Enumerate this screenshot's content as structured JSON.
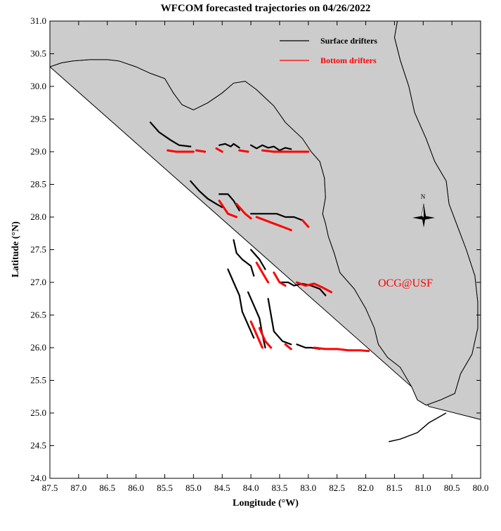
{
  "chart_data": {
    "type": "map",
    "title": "WFCOM forecasted trajectories on 04/26/2022",
    "xlabel": "Longitude (°W)",
    "ylabel": "Latitude (°N)",
    "xlim": [
      87.5,
      80.0
    ],
    "ylim": [
      24.0,
      31.0
    ],
    "x_ticks": [
      "87.5",
      "87.0",
      "86.5",
      "86.0",
      "85.5",
      "85.0",
      "84.5",
      "84.0",
      "83.5",
      "83.0",
      "82.5",
      "82.0",
      "81.5",
      "81.0",
      "80.5",
      "80.0"
    ],
    "y_ticks": [
      "31.0",
      "30.5",
      "30.0",
      "29.5",
      "29.0",
      "28.5",
      "28.0",
      "27.5",
      "27.0",
      "26.5",
      "26.0",
      "25.5",
      "25.0",
      "24.5",
      "24.0"
    ],
    "legend": [
      {
        "label": "Surface drifters",
        "color": "#000000"
      },
      {
        "label": "Bottom drifters",
        "color": "#ff0000"
      }
    ],
    "annotation": "OCG@USF",
    "compass_label": "N",
    "land_color": "#cccccc",
    "coastline": [
      [
        87.5,
        30.3
      ],
      [
        87.3,
        30.36
      ],
      [
        87.1,
        30.39
      ],
      [
        86.8,
        30.41
      ],
      [
        86.5,
        30.41
      ],
      [
        86.3,
        30.39
      ],
      [
        86.0,
        30.3
      ],
      [
        85.75,
        30.2
      ],
      [
        85.5,
        30.12
      ],
      [
        85.35,
        29.9
      ],
      [
        85.2,
        29.72
      ],
      [
        85.0,
        29.64
      ],
      [
        84.75,
        29.75
      ],
      [
        84.5,
        29.9
      ],
      [
        84.3,
        30.05
      ],
      [
        84.1,
        30.08
      ],
      [
        83.9,
        29.95
      ],
      [
        83.6,
        29.7
      ],
      [
        83.4,
        29.45
      ],
      [
        83.1,
        29.2
      ],
      [
        82.95,
        29.0
      ],
      [
        82.8,
        28.85
      ],
      [
        82.72,
        28.6
      ],
      [
        82.7,
        28.3
      ],
      [
        82.75,
        28.05
      ],
      [
        82.7,
        27.9
      ],
      [
        82.65,
        27.7
      ],
      [
        82.55,
        27.45
      ],
      [
        82.45,
        27.15
      ],
      [
        82.2,
        26.9
      ],
      [
        82.0,
        26.6
      ],
      [
        81.85,
        26.3
      ],
      [
        81.78,
        26.05
      ],
      [
        81.62,
        25.85
      ],
      [
        81.4,
        25.7
      ],
      [
        81.2,
        25.4
      ],
      [
        81.1,
        25.2
      ],
      [
        80.95,
        25.12
      ],
      [
        80.7,
        25.2
      ],
      [
        80.45,
        25.3
      ],
      [
        80.35,
        25.6
      ],
      [
        80.15,
        25.9
      ],
      [
        80.05,
        26.3
      ],
      [
        80.05,
        26.7
      ],
      [
        80.1,
        27.1
      ],
      [
        80.25,
        27.5
      ],
      [
        80.4,
        27.85
      ],
      [
        80.55,
        28.2
      ],
      [
        80.6,
        28.55
      ],
      [
        80.8,
        28.85
      ],
      [
        80.95,
        29.2
      ],
      [
        81.15,
        29.6
      ],
      [
        81.25,
        30.0
      ],
      [
        81.4,
        30.4
      ],
      [
        81.5,
        30.75
      ],
      [
        81.45,
        31.0
      ]
    ],
    "keys_islands": [
      [
        81.6,
        24.56
      ],
      [
        81.4,
        24.6
      ],
      [
        81.1,
        24.7
      ],
      [
        80.9,
        24.85
      ],
      [
        80.6,
        25.0
      ]
    ],
    "surface_tracks": [
      [
        [
          85.75,
          29.45
        ],
        [
          85.6,
          29.3
        ],
        [
          85.4,
          29.18
        ],
        [
          85.25,
          29.1
        ],
        [
          85.05,
          29.08
        ]
      ],
      [
        [
          84.55,
          29.1
        ],
        [
          84.45,
          29.12
        ],
        [
          84.35,
          29.08
        ],
        [
          84.3,
          29.12
        ],
        [
          84.2,
          29.06
        ]
      ],
      [
        [
          84.0,
          29.1
        ],
        [
          83.9,
          29.05
        ],
        [
          83.8,
          29.1
        ],
        [
          83.7,
          29.06
        ],
        [
          83.6,
          29.08
        ],
        [
          83.5,
          29.02
        ],
        [
          83.4,
          29.06
        ],
        [
          83.3,
          29.04
        ]
      ],
      [
        [
          85.05,
          28.55
        ],
        [
          84.9,
          28.4
        ],
        [
          84.75,
          28.28
        ],
        [
          84.6,
          28.2
        ],
        [
          84.5,
          28.15
        ]
      ],
      [
        [
          84.55,
          28.35
        ],
        [
          84.4,
          28.35
        ],
        [
          84.3,
          28.25
        ],
        [
          84.2,
          28.1
        ]
      ],
      [
        [
          84.0,
          28.05
        ],
        [
          83.85,
          28.05
        ],
        [
          83.7,
          28.05
        ],
        [
          83.55,
          28.05
        ],
        [
          83.4,
          28.0
        ],
        [
          83.25,
          28.0
        ],
        [
          83.1,
          27.95
        ]
      ],
      [
        [
          84.3,
          27.65
        ],
        [
          84.25,
          27.45
        ],
        [
          84.15,
          27.35
        ],
        [
          84.0,
          27.25
        ],
        [
          83.95,
          27.1
        ]
      ],
      [
        [
          84.0,
          27.5
        ],
        [
          83.85,
          27.35
        ],
        [
          83.75,
          27.2
        ]
      ],
      [
        [
          83.5,
          27.0
        ],
        [
          83.35,
          27.0
        ],
        [
          83.25,
          26.95
        ],
        [
          83.1,
          26.98
        ],
        [
          82.95,
          26.95
        ],
        [
          82.8,
          26.9
        ],
        [
          82.7,
          26.8
        ]
      ],
      [
        [
          84.4,
          27.2
        ],
        [
          84.3,
          27.0
        ],
        [
          84.2,
          26.8
        ],
        [
          84.15,
          26.55
        ],
        [
          84.05,
          26.35
        ],
        [
          83.95,
          26.15
        ]
      ],
      [
        [
          84.05,
          26.85
        ],
        [
          83.95,
          26.65
        ],
        [
          83.85,
          26.45
        ],
        [
          83.8,
          26.2
        ],
        [
          83.75,
          26.0
        ]
      ],
      [
        [
          83.7,
          26.75
        ],
        [
          83.65,
          26.5
        ],
        [
          83.6,
          26.25
        ],
        [
          83.45,
          26.1
        ],
        [
          83.3,
          26.05
        ]
      ],
      [
        [
          83.2,
          26.05
        ],
        [
          83.05,
          26.0
        ],
        [
          82.95,
          26.0
        ],
        [
          82.8,
          25.98
        ]
      ]
    ],
    "bottom_tracks": [
      [
        [
          85.45,
          29.02
        ],
        [
          85.3,
          29.0
        ],
        [
          85.15,
          29.0
        ],
        [
          85.0,
          29.0
        ]
      ],
      [
        [
          84.95,
          29.02
        ],
        [
          84.8,
          29.0
        ]
      ],
      [
        [
          84.6,
          29.05
        ],
        [
          84.5,
          29.0
        ]
      ],
      [
        [
          84.2,
          29.02
        ],
        [
          84.05,
          29.0
        ]
      ],
      [
        [
          83.8,
          29.02
        ],
        [
          83.6,
          29.0
        ],
        [
          83.4,
          29.0
        ],
        [
          83.2,
          29.0
        ],
        [
          83.0,
          29.0
        ]
      ],
      [
        [
          84.55,
          28.25
        ],
        [
          84.4,
          28.05
        ],
        [
          84.25,
          28.0
        ]
      ],
      [
        [
          84.25,
          28.2
        ],
        [
          84.1,
          28.05
        ],
        [
          84.0,
          27.98
        ]
      ],
      [
        [
          83.9,
          28.0
        ],
        [
          83.75,
          27.95
        ],
        [
          83.6,
          27.9
        ],
        [
          83.45,
          27.85
        ],
        [
          83.3,
          27.8
        ]
      ],
      [
        [
          83.1,
          27.95
        ],
        [
          83.0,
          27.85
        ]
      ],
      [
        [
          83.9,
          27.3
        ],
        [
          83.8,
          27.15
        ],
        [
          83.7,
          27.0
        ]
      ],
      [
        [
          83.6,
          27.15
        ],
        [
          83.5,
          27.0
        ],
        [
          83.4,
          26.95
        ]
      ],
      [
        [
          83.2,
          27.0
        ],
        [
          83.05,
          26.95
        ],
        [
          82.9,
          26.98
        ],
        [
          82.75,
          26.92
        ],
        [
          82.6,
          26.85
        ]
      ],
      [
        [
          84.0,
          26.4
        ],
        [
          83.9,
          26.2
        ],
        [
          83.8,
          26.0
        ]
      ],
      [
        [
          83.85,
          26.3
        ],
        [
          83.75,
          26.1
        ],
        [
          83.65,
          26.0
        ]
      ],
      [
        [
          83.4,
          26.05
        ],
        [
          83.3,
          25.98
        ]
      ],
      [
        [
          82.9,
          26.0
        ],
        [
          82.7,
          25.98
        ],
        [
          82.5,
          25.98
        ],
        [
          82.3,
          25.96
        ],
        [
          82.1,
          25.96
        ],
        [
          81.95,
          25.95
        ]
      ]
    ]
  }
}
